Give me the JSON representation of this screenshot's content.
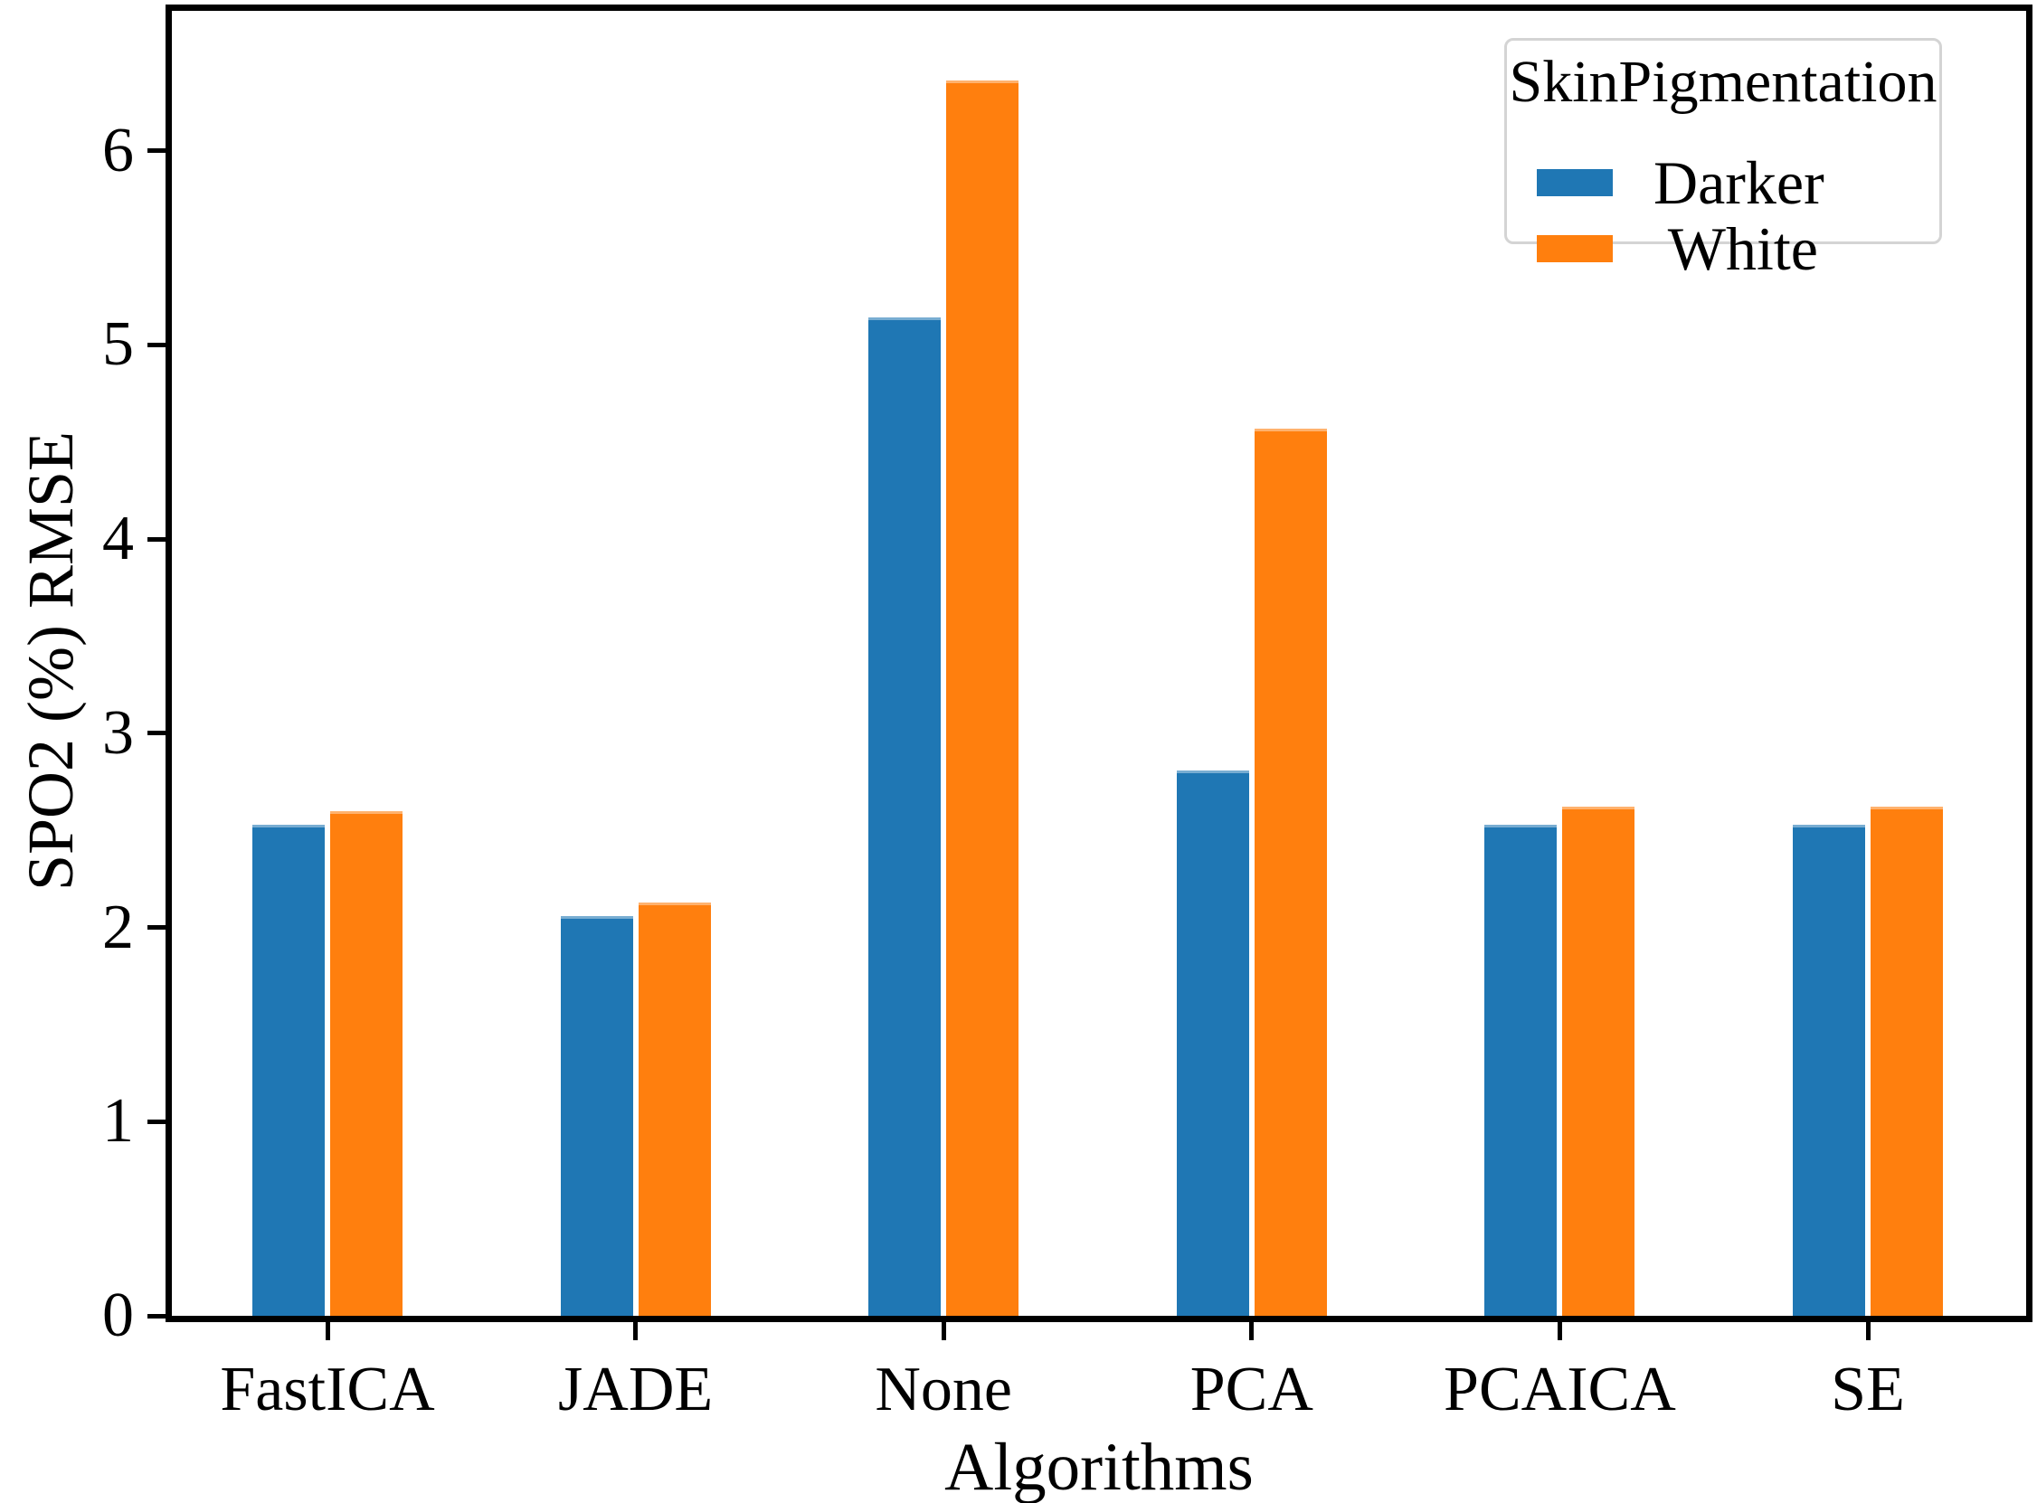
{
  "chart_data": {
    "type": "bar",
    "title": "",
    "xlabel": "Algorithms",
    "ylabel": "SPO2 (%) RMSE",
    "categories": [
      "FastICA",
      "JADE",
      "None",
      "PCA",
      "PCAICA",
      "SE"
    ],
    "series": [
      {
        "name": "Darker",
        "color": "#1f77b4",
        "values": [
          2.53,
          2.06,
          5.14,
          2.81,
          2.53,
          2.53
        ]
      },
      {
        "name": "White",
        "color": "#ff7f0e",
        "values": [
          2.6,
          2.13,
          6.36,
          4.57,
          2.62,
          2.62
        ]
      }
    ],
    "ylim": [
      0,
      6.72
    ],
    "yticks": [
      0,
      1,
      2,
      3,
      4,
      5,
      6
    ],
    "grid": false,
    "legend": {
      "title": "SkinPigmentation",
      "entries": [
        "Darker",
        " White"
      ],
      "position": "upper right"
    }
  },
  "colors": {
    "darker_bar": "#1f77b4",
    "white_bar": "#ff7f0e",
    "axis": "#000000",
    "legend_border": "#d4d4d4",
    "background": "#ffffff"
  }
}
